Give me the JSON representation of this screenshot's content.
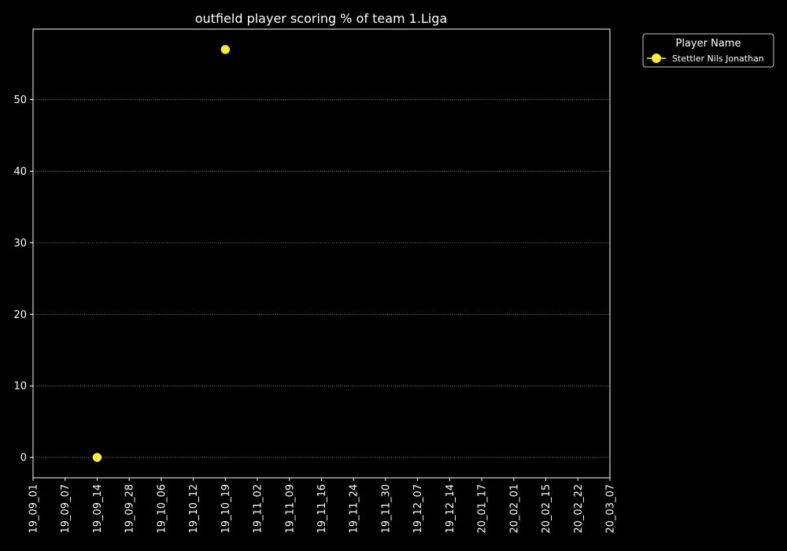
{
  "chart_data": {
    "type": "scatter",
    "title": "outfield player scoring % of team 1.Liga",
    "xlabel": "",
    "ylabel": "",
    "categories": [
      "19_09_01",
      "19_09_07",
      "19_09_14",
      "19_09_28",
      "19_10_06",
      "19_10_12",
      "19_10_19",
      "19_11_02",
      "19_11_09",
      "19_11_16",
      "19_11_24",
      "19_11_30",
      "19_12_07",
      "19_12_14",
      "20_01_17",
      "20_02_01",
      "20_02_15",
      "20_02_22",
      "20_03_07"
    ],
    "ylim": [
      -2.85,
      59.85
    ],
    "yticks": [
      0,
      10,
      20,
      30,
      40,
      50
    ],
    "grid": true,
    "legend": {
      "title": "Player Name",
      "position": "outside top-right"
    },
    "series": [
      {
        "name": "Stettler Nils Jonathan",
        "color": "#ffeb3b",
        "points": [
          {
            "x": "19_09_14",
            "y": 0
          },
          {
            "x": "19_10_19",
            "y": 57
          }
        ]
      }
    ]
  },
  "colors": {
    "background": "#000000",
    "axes": "#ffffff",
    "grid": "#ffffff"
  }
}
